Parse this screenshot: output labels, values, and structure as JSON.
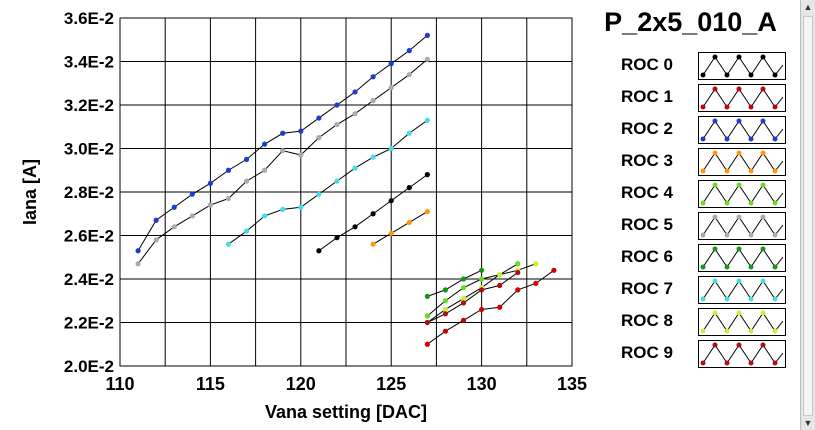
{
  "chart_data": {
    "type": "line",
    "title": "P_2x5_010_A",
    "xlabel": "Vana setting [DAC]",
    "ylabel": "Iana [A]",
    "xlim": [
      110,
      135
    ],
    "ylim": [
      0.02,
      0.036
    ],
    "x_ticks": [
      110,
      115,
      120,
      125,
      130,
      135
    ],
    "x_tick_labels": [
      "110",
      "115",
      "120",
      "125",
      "130",
      "135"
    ],
    "y_ticks": [
      0.02,
      0.022,
      0.024,
      0.026,
      0.028,
      0.03,
      0.032,
      0.034,
      0.036
    ],
    "y_tick_labels": [
      "2.0E-2",
      "2.2E-2",
      "2.4E-2",
      "2.6E-2",
      "2.8E-2",
      "3.0E-2",
      "3.2E-2",
      "3.4E-2",
      "3.6E-2"
    ],
    "grid": true,
    "legend_position": "right",
    "series": [
      {
        "name": "ROC 0",
        "color": "#000000",
        "x": [
          121,
          122,
          123,
          124,
          125,
          126,
          127
        ],
        "y": [
          0.0253,
          0.0259,
          0.0264,
          0.027,
          0.0276,
          0.0282,
          0.0288
        ]
      },
      {
        "name": "ROC 1",
        "color": "#cc0000",
        "x": [
          127,
          128,
          129,
          130,
          131,
          132,
          133,
          134
        ],
        "y": [
          0.021,
          0.0216,
          0.0221,
          0.0226,
          0.0227,
          0.0235,
          0.0238,
          0.0244
        ]
      },
      {
        "name": "ROC 2",
        "color": "#1a3fcc",
        "x": [
          111,
          112,
          113,
          114,
          115,
          116,
          117,
          118,
          119,
          120,
          121,
          122,
          123,
          124,
          125,
          126,
          127
        ],
        "y": [
          0.0253,
          0.0267,
          0.0273,
          0.0279,
          0.0284,
          0.029,
          0.0295,
          0.0302,
          0.0307,
          0.0308,
          0.0314,
          0.032,
          0.0326,
          0.0333,
          0.0339,
          0.0345,
          0.0352
        ]
      },
      {
        "name": "ROC 3",
        "color": "#ff9900",
        "x": [
          124,
          125,
          126,
          127
        ],
        "y": [
          0.0256,
          0.0261,
          0.0266,
          0.0271
        ]
      },
      {
        "name": "ROC 4",
        "color": "#66dd22",
        "x": [
          127,
          128,
          129,
          130,
          131,
          132
        ],
        "y": [
          0.0223,
          0.023,
          0.0236,
          0.024,
          0.0242,
          0.0247
        ]
      },
      {
        "name": "ROC 5",
        "color": "#aaaaaa",
        "x": [
          111,
          112,
          113,
          114,
          115,
          116,
          117,
          118,
          119,
          120,
          121,
          122,
          123,
          124,
          125,
          126,
          127
        ],
        "y": [
          0.0247,
          0.0258,
          0.0264,
          0.0269,
          0.0274,
          0.0277,
          0.0285,
          0.029,
          0.0299,
          0.0297,
          0.0305,
          0.0311,
          0.0316,
          0.0322,
          0.0328,
          0.0334,
          0.0341
        ]
      },
      {
        "name": "ROC 6",
        "color": "#119911",
        "x": [
          127,
          128,
          129,
          130
        ],
        "y": [
          0.0232,
          0.0235,
          0.024,
          0.0244
        ]
      },
      {
        "name": "ROC 7",
        "color": "#44ddee",
        "x": [
          116,
          117,
          118,
          119,
          120,
          121,
          122,
          123,
          124,
          125,
          126,
          127
        ],
        "y": [
          0.0256,
          0.0262,
          0.0269,
          0.0272,
          0.0273,
          0.0279,
          0.0285,
          0.0291,
          0.0296,
          0.03,
          0.0307,
          0.0313
        ]
      },
      {
        "name": "ROC 8",
        "color": "#ccee33",
        "x": [
          127,
          128,
          129,
          130,
          131,
          132,
          133
        ],
        "y": [
          0.022,
          0.0226,
          0.0231,
          0.0236,
          0.0242,
          0.0244,
          0.0247
        ]
      },
      {
        "name": "ROC 9",
        "color": "#aa1111",
        "x": [
          127,
          128,
          129,
          130,
          131,
          132
        ],
        "y": [
          0.022,
          0.0224,
          0.0229,
          0.0235,
          0.0237,
          0.0243
        ]
      }
    ]
  },
  "legend": {
    "title": "P_2x5_010_A",
    "items": [
      {
        "label": "ROC 0",
        "color": "#000000"
      },
      {
        "label": "ROC 1",
        "color": "#cc0000"
      },
      {
        "label": "ROC 2",
        "color": "#1a3fcc"
      },
      {
        "label": "ROC 3",
        "color": "#ff9900"
      },
      {
        "label": "ROC 4",
        "color": "#66dd22"
      },
      {
        "label": "ROC 5",
        "color": "#aaaaaa"
      },
      {
        "label": "ROC 6",
        "color": "#119911"
      },
      {
        "label": "ROC 7",
        "color": "#44ddee"
      },
      {
        "label": "ROC 8",
        "color": "#ccee33"
      },
      {
        "label": "ROC 9",
        "color": "#aa1111"
      }
    ]
  }
}
